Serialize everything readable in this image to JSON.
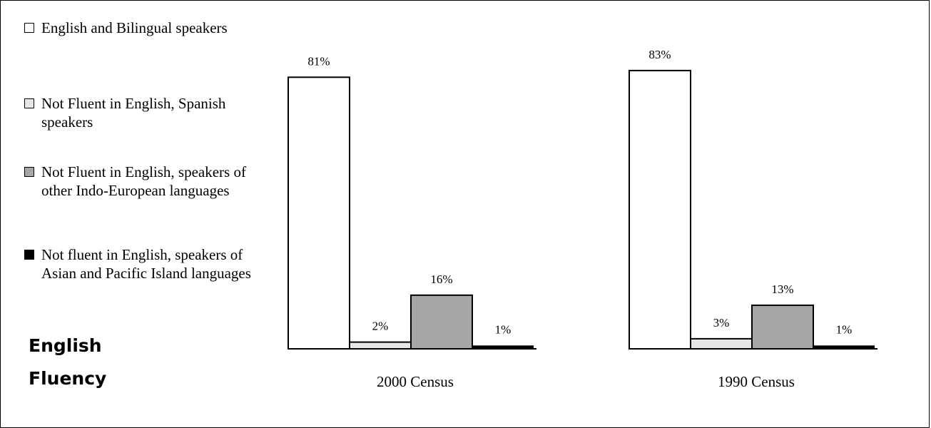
{
  "title_lines": [
    "English",
    "Fluency"
  ],
  "colors": {
    "bg": "#ffffff",
    "series": [
      "#ffffff",
      "#e6e6e6",
      "#a6a6a6",
      "#000000"
    ]
  },
  "chart_data": {
    "type": "bar",
    "categories": [
      "2000 Census",
      "1990 Census"
    ],
    "ylim": [
      0,
      100
    ],
    "grid": false,
    "legend_position": "left",
    "series": [
      {
        "name": "English and Bilingual speakers",
        "values": [
          81,
          83
        ],
        "labels": [
          "81%",
          "83%"
        ]
      },
      {
        "name": "Not Fluent in English, Spanish speakers",
        "values": [
          2,
          3
        ],
        "labels": [
          "2%",
          "3%"
        ]
      },
      {
        "name": "Not Fluent in English, speakers of other Indo-European languages",
        "values": [
          16,
          13
        ],
        "labels": [
          "16%",
          "13%"
        ]
      },
      {
        "name": "Not fluent in English, speakers of Asian and Pacific Island languages",
        "values": [
          1,
          1
        ],
        "labels": [
          "1%",
          "1%"
        ]
      }
    ]
  }
}
